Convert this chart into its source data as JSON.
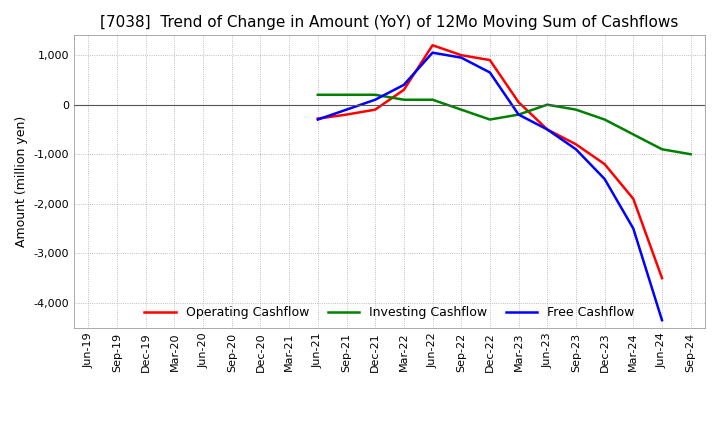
{
  "title": "[7038]  Trend of Change in Amount (YoY) of 12Mo Moving Sum of Cashflows",
  "ylabel": "Amount (million yen)",
  "ylim": [
    -4500,
    1400
  ],
  "yticks": [
    1000,
    0,
    -1000,
    -2000,
    -3000,
    -4000
  ],
  "x_labels": [
    "Jun-19",
    "Sep-19",
    "Dec-19",
    "Mar-20",
    "Jun-20",
    "Sep-20",
    "Dec-20",
    "Mar-21",
    "Jun-21",
    "Sep-21",
    "Dec-21",
    "Mar-22",
    "Jun-22",
    "Sep-22",
    "Dec-22",
    "Mar-23",
    "Jun-23",
    "Sep-23",
    "Dec-23",
    "Mar-24",
    "Jun-24",
    "Sep-24"
  ],
  "operating": [
    null,
    null,
    null,
    null,
    null,
    null,
    null,
    null,
    -280,
    -200,
    -100,
    300,
    1200,
    1000,
    900,
    50,
    -500,
    -800,
    -1200,
    -1900,
    -3500,
    null
  ],
  "investing": [
    null,
    null,
    null,
    null,
    null,
    null,
    null,
    null,
    200,
    200,
    200,
    100,
    100,
    -100,
    -300,
    -200,
    0,
    -100,
    -300,
    -600,
    -900,
    -1000
  ],
  "free": [
    null,
    null,
    null,
    null,
    null,
    null,
    null,
    null,
    -300,
    -100,
    100,
    400,
    1050,
    950,
    650,
    -200,
    -500,
    -900,
    -1500,
    -2500,
    -4350,
    null
  ],
  "op_color": "#ff0000",
  "inv_color": "#008000",
  "free_color": "#0000ff",
  "bg_color": "#ffffff",
  "grid_color": "#aaaaaa",
  "title_fontsize": 11,
  "label_fontsize": 9,
  "tick_fontsize": 8
}
